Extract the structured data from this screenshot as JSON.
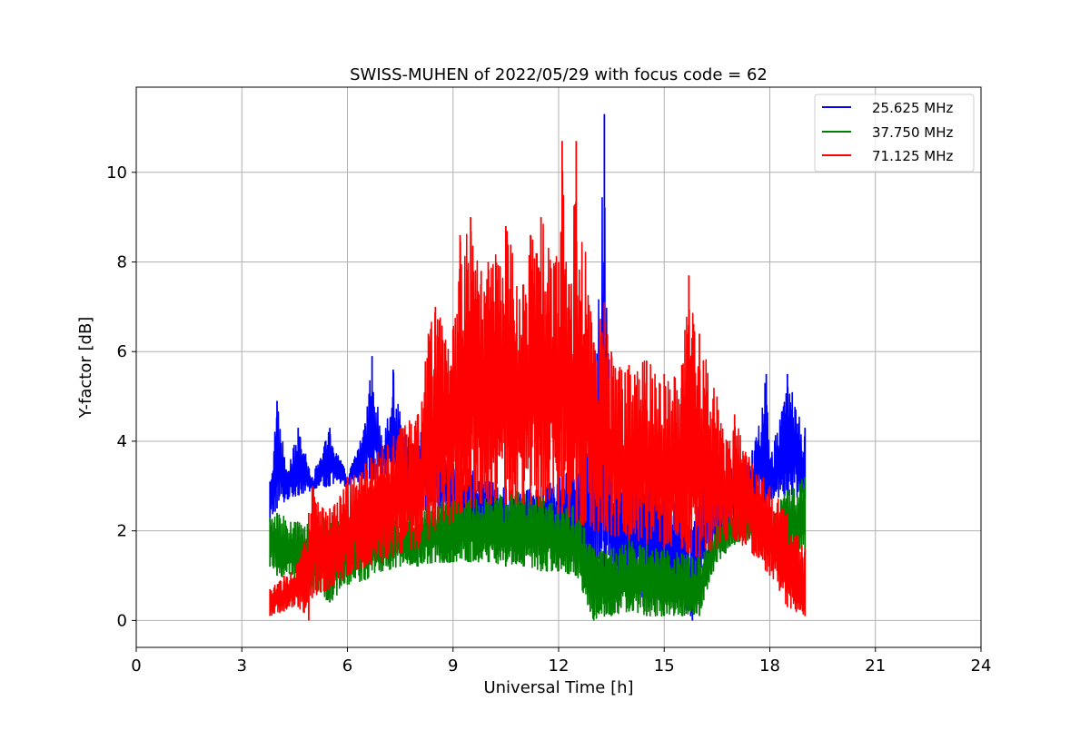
{
  "chart_data": {
    "type": "line",
    "title": "SWISS-MUHEN of 2022/05/29 with focus code = 62",
    "xlabel": "Universal Time [h]",
    "ylabel": "Y-factor [dB]",
    "xlim": [
      0,
      24
    ],
    "ylim": [
      -0.6,
      11.9
    ],
    "xticks": [
      0,
      3,
      6,
      9,
      12,
      15,
      18,
      21,
      24
    ],
    "yticks": [
      0,
      2,
      4,
      6,
      8,
      10
    ],
    "grid": true,
    "legend_position": "top-right",
    "series": [
      {
        "name": "25.625 MHz",
        "color": "#0000ff",
        "x": [
          3.8,
          4.0,
          4.3,
          4.6,
          5.0,
          5.5,
          6.0,
          6.5,
          6.7,
          7.0,
          7.3,
          7.6,
          8.0,
          8.5,
          9.0,
          9.5,
          10.0,
          10.5,
          11.0,
          11.5,
          12.0,
          12.5,
          13.0,
          13.3,
          13.5,
          14.0,
          14.5,
          15.0,
          15.5,
          15.8,
          16.0,
          16.5,
          17.0,
          17.5,
          17.9,
          18.0,
          18.5,
          19.0
        ],
        "y": [
          3.1,
          4.9,
          3.3,
          4.3,
          3.2,
          4.3,
          3.2,
          4.4,
          5.9,
          3.9,
          5.6,
          4.1,
          4.4,
          4.0,
          3.5,
          3.4,
          3.1,
          3.0,
          2.9,
          3.0,
          3.2,
          3.4,
          4.3,
          11.3,
          3.8,
          3.5,
          3.4,
          3.2,
          3.1,
          2.0,
          3.2,
          3.3,
          3.5,
          3.8,
          5.5,
          3.6,
          5.5,
          4.3
        ],
        "lower_envelope": [
          2.2,
          2.5,
          2.7,
          2.8,
          2.9,
          3.0,
          3.0,
          3.1,
          3.1,
          3.2,
          3.2,
          3.2,
          2.4,
          2.5,
          2.4,
          2.0,
          1.8,
          1.6,
          1.7,
          1.6,
          1.5,
          1.3,
          0.7,
          0.4,
          0.6,
          0.6,
          0.5,
          0.4,
          0.3,
          0.0,
          1.1,
          1.6,
          2.2,
          2.5,
          2.6,
          2.7,
          2.8,
          2.7
        ]
      },
      {
        "name": "37.750 MHz",
        "color": "#008000",
        "x": [
          3.8,
          4.0,
          4.5,
          5.0,
          5.5,
          6.0,
          6.5,
          7.0,
          7.5,
          8.0,
          8.5,
          9.0,
          9.5,
          10.0,
          10.5,
          11.0,
          11.5,
          12.0,
          12.5,
          12.9,
          13.0,
          13.5,
          14.0,
          14.5,
          15.0,
          15.5,
          16.0,
          16.5,
          17.0,
          17.5,
          18.0,
          18.5,
          19.0
        ],
        "y": [
          2.3,
          2.4,
          2.2,
          2.4,
          2.3,
          2.3,
          2.3,
          2.4,
          2.4,
          2.5,
          2.6,
          2.8,
          2.8,
          2.7,
          2.9,
          2.9,
          2.8,
          2.6,
          2.6,
          1.7,
          1.6,
          1.6,
          1.8,
          1.7,
          1.6,
          1.5,
          1.4,
          2.2,
          2.6,
          2.6,
          2.5,
          2.9,
          3.2
        ],
        "lower_envelope": [
          1.2,
          1.0,
          0.9,
          0.7,
          0.4,
          0.8,
          0.9,
          1.1,
          1.2,
          1.2,
          1.3,
          1.3,
          1.3,
          1.3,
          1.2,
          1.2,
          1.1,
          1.1,
          1.0,
          0.2,
          0.0,
          0.1,
          0.2,
          0.1,
          0.1,
          0.1,
          0.1,
          1.3,
          1.7,
          1.8,
          1.5,
          1.5,
          1.5
        ]
      },
      {
        "name": "71.125 MHz",
        "color": "#ff0000",
        "x": [
          3.8,
          4.2,
          4.6,
          4.9,
          5.0,
          5.5,
          6.0,
          6.5,
          7.0,
          7.5,
          8.0,
          8.3,
          8.5,
          9.0,
          9.2,
          9.5,
          9.8,
          10.0,
          10.5,
          11.0,
          11.2,
          11.5,
          12.0,
          12.1,
          12.3,
          12.5,
          13.0,
          13.3,
          13.5,
          14.0,
          14.5,
          15.0,
          15.5,
          15.7,
          16.0,
          16.5,
          16.8,
          17.0,
          17.5,
          18.0,
          18.5,
          19.0
        ],
        "y": [
          0.7,
          1.0,
          1.3,
          2.4,
          3.0,
          2.5,
          3.2,
          3.5,
          3.9,
          4.3,
          4.6,
          6.4,
          7.0,
          6.5,
          8.6,
          9.0,
          7.8,
          8.0,
          8.8,
          7.5,
          8.6,
          9.0,
          8.0,
          10.7,
          7.5,
          10.7,
          6.2,
          7.1,
          6.0,
          5.7,
          5.8,
          5.5,
          5.7,
          7.7,
          6.4,
          5.0,
          4.0,
          4.6,
          3.5,
          3.0,
          2.4,
          1.6
        ],
        "lower_envelope": [
          0.1,
          0.2,
          0.3,
          0.0,
          0.5,
          0.7,
          1.0,
          1.2,
          1.3,
          1.5,
          1.6,
          1.8,
          2.0,
          2.2,
          2.4,
          2.5,
          2.6,
          2.6,
          2.6,
          2.6,
          2.6,
          2.5,
          2.4,
          2.4,
          2.3,
          2.2,
          2.0,
          2.0,
          1.9,
          1.8,
          1.7,
          1.6,
          1.6,
          1.5,
          1.4,
          1.6,
          1.8,
          1.8,
          1.5,
          1.0,
          0.3,
          0.1
        ]
      }
    ]
  }
}
